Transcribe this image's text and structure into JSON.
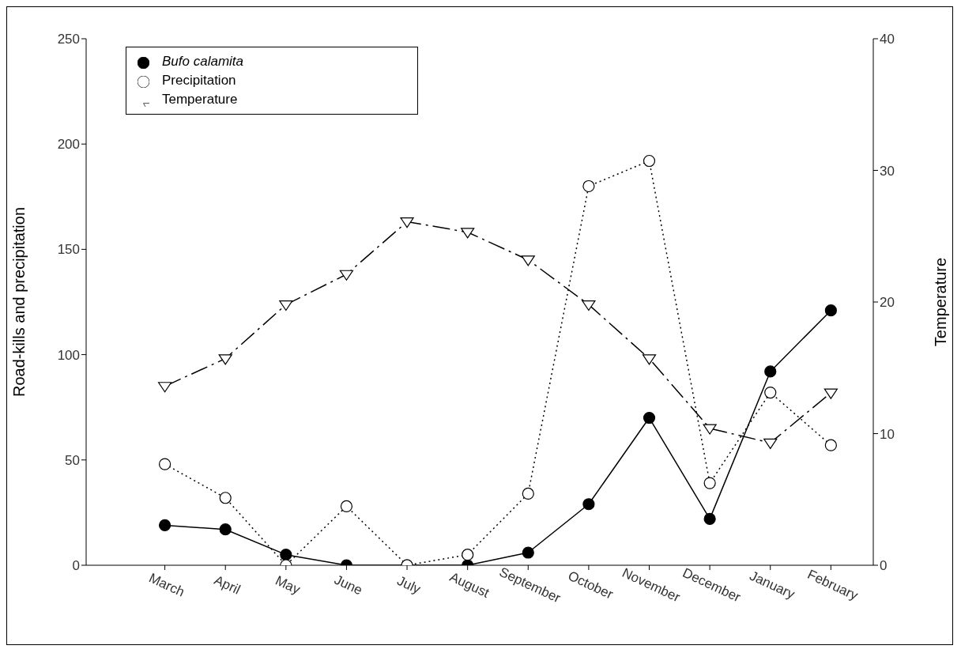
{
  "chart_data": {
    "type": "line",
    "ylabel": "Road-kills and precipitation",
    "y2label": "Temperature",
    "categories": [
      "March",
      "April",
      "May",
      "June",
      "July",
      "August",
      "September",
      "October",
      "November",
      "December",
      "January",
      "February"
    ],
    "series": [
      {
        "name": "Bufo calamita",
        "color": "#000000",
        "marker": "circle",
        "line_style": "solid",
        "values": [
          19,
          17,
          5,
          0,
          0,
          0,
          6,
          29,
          70,
          22,
          92,
          121
        ]
      },
      {
        "name": "Precipitation",
        "color": "#000000",
        "marker": "circle",
        "line_style": "dotted",
        "values": [
          48,
          32,
          0,
          28,
          0,
          5,
          34,
          180,
          192,
          39,
          82,
          57
        ]
      },
      {
        "name": "Temperature",
        "color": "#000000",
        "marker": "triangle",
        "line_style": "dashed",
        "axis": "y2",
        "values": [
          13.6,
          15.7,
          19.8,
          22.1,
          26.1,
          25.3,
          23.2,
          19.8,
          15.7,
          10.4,
          9.3,
          13.1
        ]
      }
    ],
    "ylim": [
      0,
      250
    ],
    "yticks": [
      0,
      50,
      100,
      150,
      200,
      250
    ],
    "y2lim": [
      0,
      40
    ],
    "y2ticks": [
      0,
      10,
      20,
      30,
      40
    ],
    "grid": false,
    "legend": "top left"
  }
}
